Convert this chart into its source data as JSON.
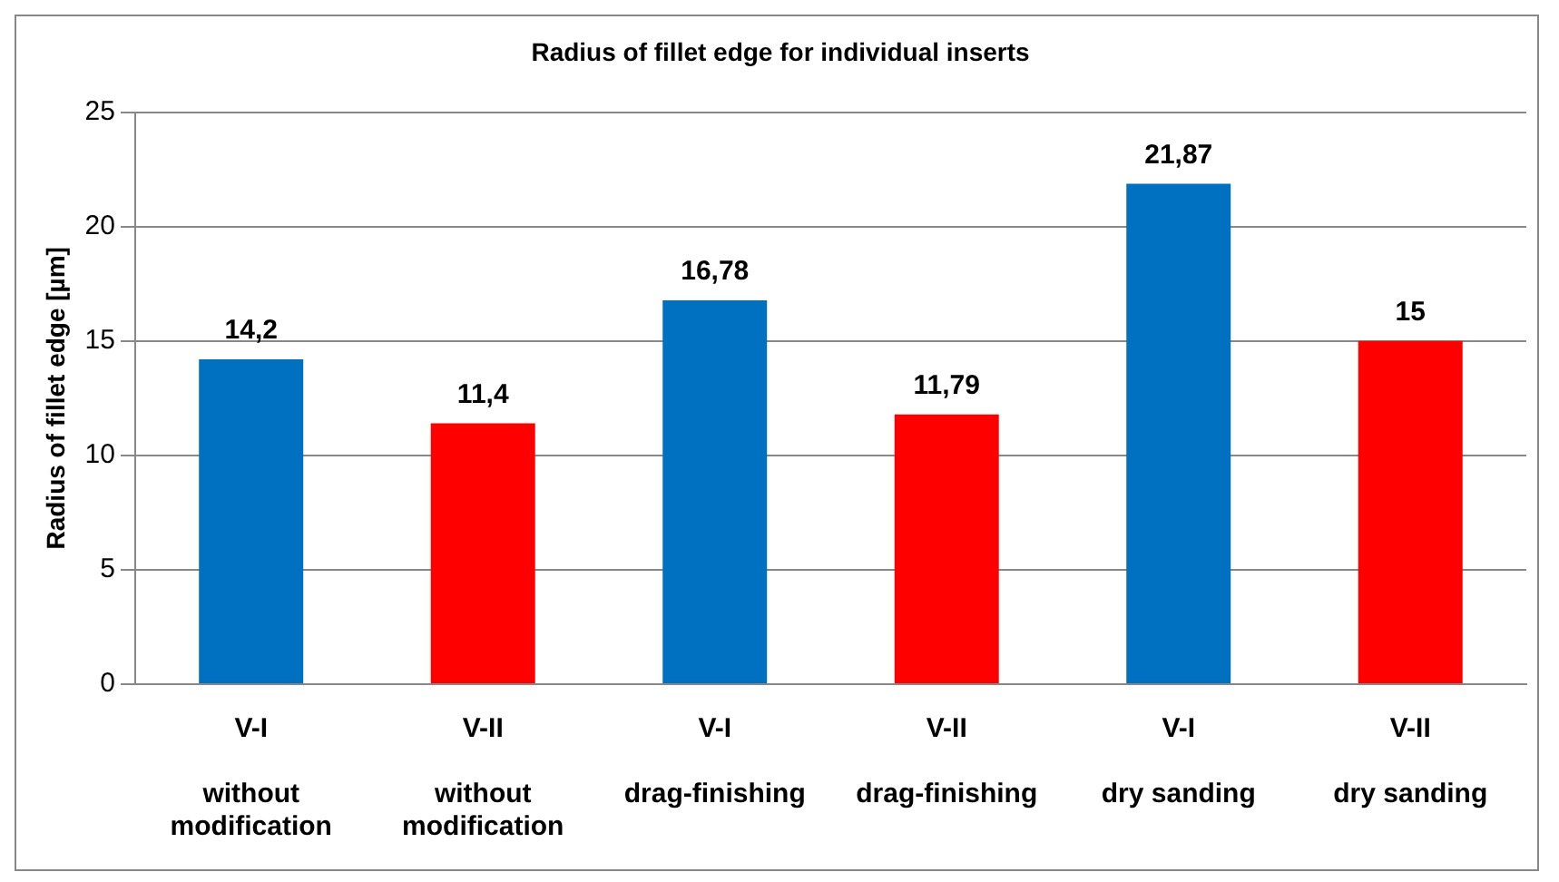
{
  "chart_data": {
    "type": "bar",
    "title": "Radius of fillet edge for individual inserts",
    "ylabel": "Radius of fillet edge [µm]",
    "categories": [
      "V-I\nwithout modification",
      "V-II\nwithout modification",
      "V-I\ndrag-finishing",
      "V-II\ndrag-finishing",
      "V-I\ndry sanding",
      "V-II\ndry sanding"
    ],
    "values": [
      14.2,
      11.4,
      16.78,
      11.79,
      21.87,
      15
    ],
    "colors": [
      "#0070c0",
      "#ff0000",
      "#0070c0",
      "#ff0000",
      "#0070c0",
      "#ff0000"
    ],
    "value_labels": [
      "14,2",
      "11,4",
      "16,78",
      "11,79",
      "21,87",
      "15"
    ],
    "ylim": [
      0,
      25
    ],
    "yticks": [
      0,
      5,
      10,
      15,
      20,
      25
    ],
    "grid": "y",
    "legend": false
  }
}
